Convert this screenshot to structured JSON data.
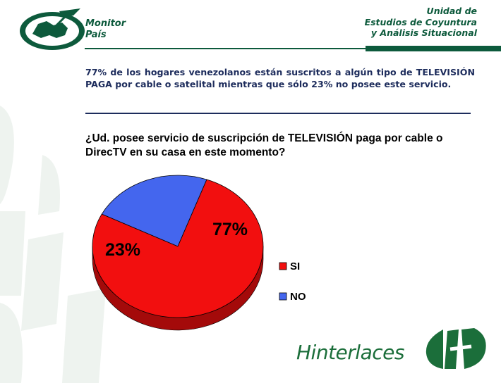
{
  "header": {
    "logo_line1": "Monitor",
    "logo_line2": "País",
    "unit_line1": "Unidad de",
    "unit_line2": "Estudios de Coyuntura",
    "unit_line3": "y Análisis Situacional"
  },
  "summary": "77% de los hogares venezolanos están suscritos a algún tipo de TELEVISIÓN PAGA por cable o satelital mientras que sólo 23% no posee este servicio.",
  "question": "¿Ud. posee servicio de suscripción de TELEVISIÓN paga por cable o DirecTV en su casa en este momento?",
  "chart_data": {
    "type": "pie",
    "title": "",
    "categories": [
      "SI",
      "NO"
    ],
    "values": [
      77,
      23
    ],
    "labels": [
      "77%",
      "23%"
    ],
    "colors": [
      "#f20f0f",
      "#4466ee"
    ],
    "side_colors": [
      "#a40a0a",
      "#2b3f9c"
    ],
    "legend": "right",
    "three_d": true
  },
  "footer": {
    "brand": "Hinterlaces",
    "brand_color": "#1b6e3a"
  }
}
